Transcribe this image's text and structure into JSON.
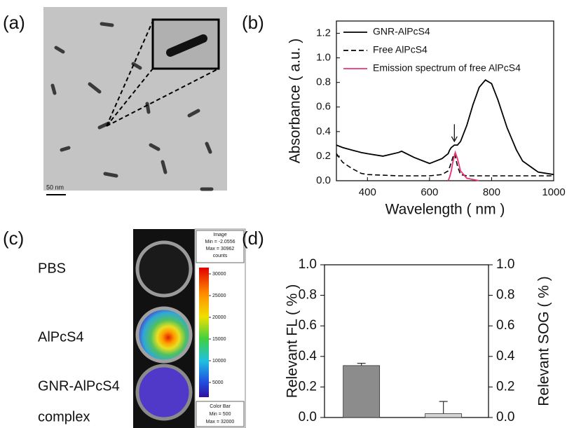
{
  "panel_a": {
    "label": "(a)",
    "scale_bar": "50 nm"
  },
  "panel_c": {
    "label": "(c)",
    "rows": [
      "PBS",
      "AlPcS4",
      "GNR-AlPcS4",
      "complex"
    ],
    "image_box": [
      "Image",
      "Min = -2.0556",
      "Max = 30962",
      "counts"
    ],
    "colorbar_box": [
      "Color Bar",
      "Min = 500",
      "Max = 32000"
    ],
    "colorbar_ticks": [
      30000,
      25000,
      20000,
      15000,
      10000,
      5000
    ]
  },
  "chart_data": [
    {
      "type": "line",
      "panel_label": "(b)",
      "x_label": "Wavelength ( nm )",
      "y_label": "Absorbance ( a.u. )",
      "xlim": [
        300,
        1000
      ],
      "xticks": [
        400,
        600,
        800,
        1000
      ],
      "ylim": [
        0,
        1.3
      ],
      "yticks": [
        {
          "value": 0,
          "label": "0.0"
        },
        0.2,
        0.4,
        0.6,
        0.8,
        {
          "value": 1,
          "label": "1.0"
        },
        1.2
      ],
      "legend": "upper left",
      "x": [
        300,
        320,
        350,
        380,
        400,
        450,
        500,
        510,
        550,
        600,
        640,
        660,
        665,
        670,
        675,
        680,
        683,
        690,
        700,
        720,
        740,
        750,
        760,
        780,
        800,
        820,
        850,
        880,
        900,
        950,
        1000
      ],
      "series": [
        {
          "name": "GNR-AlPcS4",
          "color": "#000000",
          "linestyle": "solid",
          "values": [
            0.29,
            0.27,
            0.25,
            0.23,
            0.22,
            0.2,
            0.23,
            0.24,
            0.19,
            0.14,
            0.18,
            0.22,
            0.25,
            0.27,
            0.28,
            0.29,
            0.29,
            0.29,
            0.32,
            0.45,
            0.62,
            0.69,
            0.76,
            0.82,
            0.79,
            0.66,
            0.43,
            0.25,
            0.16,
            0.07,
            0.05
          ]
        },
        {
          "name": "Free AlPcS4",
          "color": "#000000",
          "linestyle": "dashed",
          "values": [
            0.22,
            0.15,
            0.1,
            0.06,
            0.05,
            0.045,
            0.04,
            0.04,
            0.04,
            0.04,
            0.05,
            0.08,
            0.11,
            0.15,
            0.19,
            0.22,
            0.2,
            0.12,
            0.05,
            0.04,
            0.04,
            0.04,
            0.04,
            0.04,
            0.04,
            0.04,
            0.04,
            0.04,
            0.04,
            0.04,
            0.04
          ]
        },
        {
          "name": "Emission spectrum of free AlPcS4",
          "color": "#e8357a",
          "linestyle": "solid",
          "values": [
            null,
            null,
            null,
            null,
            null,
            null,
            null,
            null,
            null,
            null,
            null,
            0.0,
            0.03,
            0.08,
            0.15,
            0.2,
            0.23,
            0.18,
            0.08,
            0.02,
            0.01,
            0.005,
            0.0,
            null,
            null,
            null,
            null,
            null,
            null,
            null,
            null
          ]
        }
      ],
      "arrow_at": 680
    },
    {
      "type": "bar",
      "panel_label": "(d)",
      "y_label": "Relevant FL ( % )",
      "y2_label": "Relevant SOG ( % )",
      "categories": [
        null,
        null
      ],
      "ylim": [
        0,
        1
      ],
      "yticks": [
        {
          "value": 0,
          "label": "0.0"
        },
        0.2,
        0.4,
        0.6,
        0.8,
        {
          "value": 1,
          "label": "1.0"
        }
      ],
      "y2lim": [
        0,
        1
      ],
      "y2ticks": [
        {
          "value": 0,
          "label": "0.0"
        },
        0.2,
        0.4,
        0.6,
        0.8,
        {
          "value": 1,
          "label": "1.0"
        }
      ],
      "series": [
        {
          "color": "#8c8c8c",
          "values": [
            0.34,
            null
          ],
          "errors": [
            0.015,
            null
          ]
        },
        {
          "color": "#d4d4d4",
          "axis": "y2",
          "values": [
            null,
            0.025
          ],
          "errors": [
            null,
            0.08
          ]
        }
      ]
    }
  ]
}
